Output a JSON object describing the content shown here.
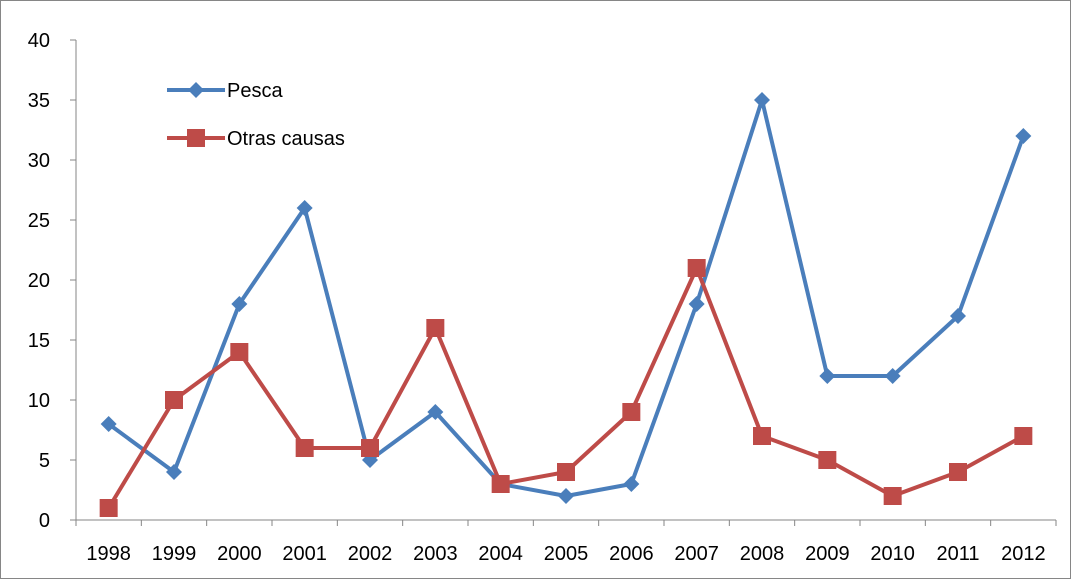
{
  "chart_data": {
    "type": "line",
    "title": "",
    "xlabel": "",
    "ylabel": "",
    "categories": [
      "1998",
      "1999",
      "2000",
      "2001",
      "2002",
      "2003",
      "2004",
      "2005",
      "2006",
      "2007",
      "2008",
      "2009",
      "2010",
      "2011",
      "2012"
    ],
    "ylim": [
      0,
      40
    ],
    "yticks": [
      "0",
      "5",
      "10",
      "15",
      "20",
      "25",
      "30",
      "35",
      "40"
    ],
    "grid": false,
    "legend_position": "top-left",
    "series": [
      {
        "name": "Pesca",
        "color": "#4a7ebb",
        "marker": "diamond",
        "values": [
          8,
          4,
          18,
          26,
          5,
          9,
          3,
          2,
          3,
          18,
          35,
          12,
          12,
          17,
          32
        ]
      },
      {
        "name": "Otras causas",
        "color": "#be4b48",
        "marker": "square",
        "values": [
          1,
          10,
          14,
          6,
          6,
          16,
          3,
          4,
          9,
          21,
          7,
          5,
          2,
          4,
          7
        ]
      }
    ]
  }
}
